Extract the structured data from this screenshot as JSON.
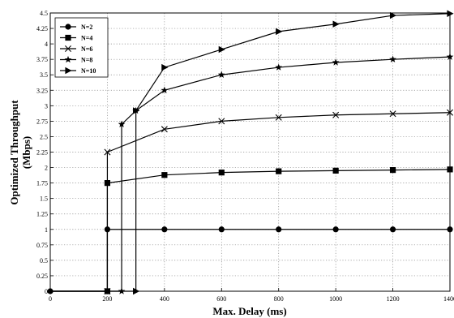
{
  "chart_data": {
    "type": "line",
    "xlabel": "Max. Delay (ms)",
    "ylabel_line1": "Optimized Throughput",
    "ylabel_line2": "(Mbps)",
    "xlim": [
      0,
      1400
    ],
    "ylim": [
      0,
      4.5
    ],
    "x_ticks": [
      0,
      200,
      400,
      600,
      800,
      1000,
      1200,
      1400
    ],
    "y_ticks": [
      0,
      0.25,
      0.5,
      0.75,
      1,
      1.25,
      1.5,
      1.75,
      2,
      2.25,
      2.5,
      2.75,
      3,
      3.25,
      3.5,
      3.75,
      4,
      4.25,
      4.5
    ],
    "y_tick_labels": [
      "0",
      "0.25",
      "0.5",
      "0.75",
      "1",
      "1.25",
      "1.5",
      "1.75",
      "2",
      "2.25",
      "2.5",
      "2.75",
      "3",
      "3.25",
      "3.5",
      "3.75",
      "4",
      "4.25",
      "4.5"
    ],
    "grid": true,
    "legend_position": "top-left",
    "series": [
      {
        "name": "N=2",
        "marker": "circle",
        "x": [
          0,
          200,
          200,
          400,
          600,
          800,
          1000,
          1200,
          1400
        ],
        "y": [
          0,
          0,
          1,
          1,
          1,
          1,
          1,
          1,
          1
        ],
        "marker_x": [
          0,
          200,
          200,
          400,
          600,
          800,
          1000,
          1200,
          1400
        ],
        "marker_y": [
          0,
          0,
          1,
          1,
          1,
          1,
          1,
          1,
          1
        ]
      },
      {
        "name": "N=4",
        "marker": "square",
        "x": [
          0,
          200,
          200,
          400,
          600,
          800,
          1000,
          1200,
          1400
        ],
        "y": [
          0,
          0,
          1.75,
          1.88,
          1.92,
          1.94,
          1.95,
          1.96,
          1.97
        ],
        "marker_x": [
          200,
          200,
          400,
          600,
          800,
          1000,
          1200,
          1400
        ],
        "marker_y": [
          0,
          1.75,
          1.88,
          1.92,
          1.94,
          1.95,
          1.96,
          1.97
        ]
      },
      {
        "name": "N=6",
        "marker": "x",
        "x": [
          0,
          200,
          200,
          400,
          600,
          800,
          1000,
          1200,
          1400
        ],
        "y": [
          0,
          0,
          2.25,
          2.62,
          2.75,
          2.81,
          2.85,
          2.87,
          2.89
        ],
        "marker_x": [
          200,
          200,
          400,
          600,
          800,
          1000,
          1200,
          1400
        ],
        "marker_y": [
          0,
          2.25,
          2.62,
          2.75,
          2.81,
          2.85,
          2.87,
          2.89
        ]
      },
      {
        "name": "N=8",
        "marker": "star",
        "x": [
          0,
          250,
          250,
          300,
          400,
          600,
          800,
          1000,
          1200,
          1400
        ],
        "y": [
          0,
          0,
          2.7,
          2.92,
          3.25,
          3.5,
          3.62,
          3.7,
          3.75,
          3.79
        ],
        "marker_x": [
          250,
          250,
          300,
          400,
          600,
          800,
          1000,
          1200,
          1400
        ],
        "marker_y": [
          0,
          2.7,
          2.92,
          3.25,
          3.5,
          3.62,
          3.7,
          3.75,
          3.79
        ]
      },
      {
        "name": "N=10",
        "marker": "triangle-right",
        "x": [
          0,
          300,
          300,
          400,
          600,
          800,
          1000,
          1200,
          1400
        ],
        "y": [
          0,
          0,
          2.92,
          3.62,
          3.91,
          4.2,
          4.32,
          4.46,
          4.49
        ],
        "marker_x": [
          300,
          300,
          400,
          600,
          800,
          1000,
          1200,
          1400
        ],
        "marker_y": [
          0,
          2.92,
          3.62,
          3.91,
          4.2,
          4.32,
          4.46,
          4.49
        ]
      }
    ]
  }
}
